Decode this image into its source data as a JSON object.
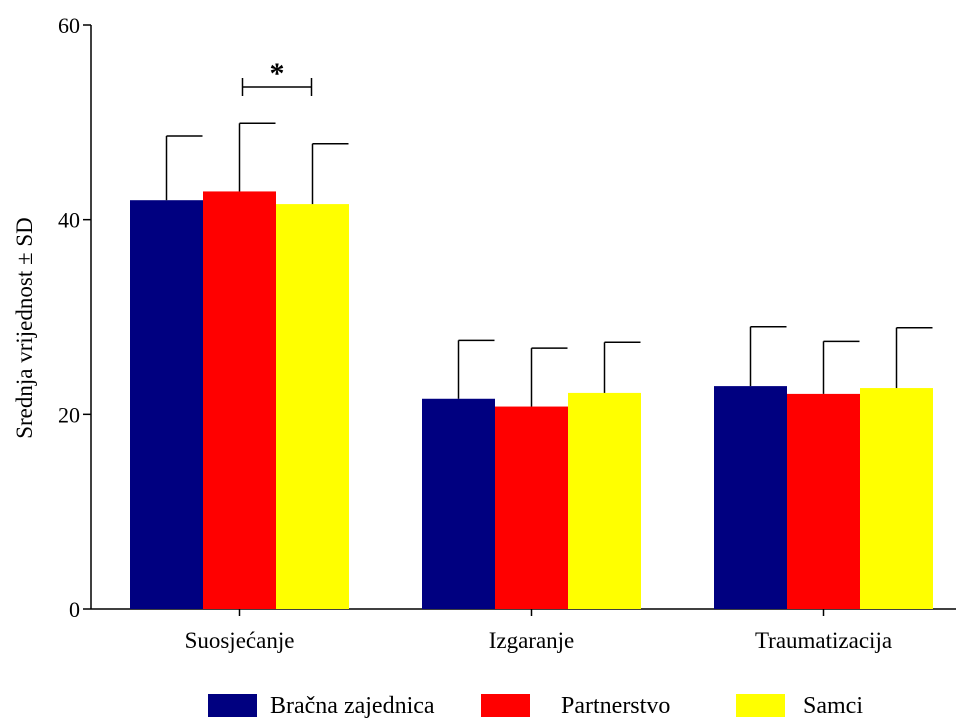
{
  "chart_data": {
    "type": "bar",
    "title": "",
    "xlabel": "",
    "ylabel": "Srednja vrijednost ± SD",
    "ylim": [
      0,
      60
    ],
    "yticks": [
      "0",
      "20",
      "40",
      "60"
    ],
    "categories": [
      "Suosjećanje",
      "Izgaranje",
      "Traumatizacija"
    ],
    "series": [
      {
        "name": "Bračna zajednica",
        "color": "#000080",
        "values": [
          42.0,
          21.6,
          22.9
        ],
        "sd": [
          6.6,
          6.0,
          6.1
        ]
      },
      {
        "name": "Partnerstvo",
        "color": "#ff0000",
        "values": [
          42.9,
          20.8,
          22.1
        ],
        "sd": [
          7.0,
          6.0,
          5.4
        ]
      },
      {
        "name": "Samci",
        "color": "#ffff00",
        "values": [
          41.6,
          22.2,
          22.7
        ],
        "sd": [
          6.2,
          5.2,
          6.2
        ]
      }
    ],
    "annotation": {
      "text": "*",
      "category_index": 0,
      "from_series": 1,
      "to_series": 2
    },
    "legend_position": "bottom",
    "grid": false
  }
}
